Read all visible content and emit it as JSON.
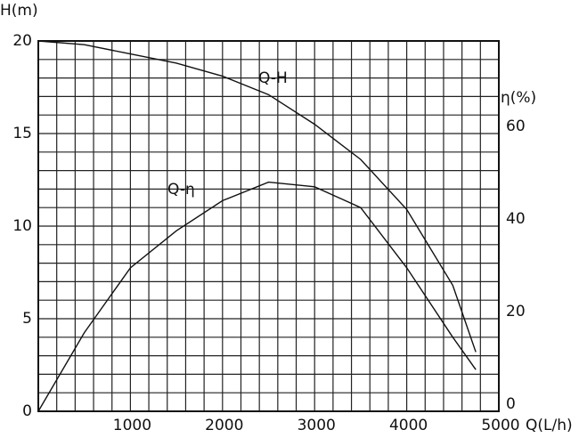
{
  "chart_data": {
    "type": "line",
    "y_label": "H(m)",
    "y2_label": "η(%)",
    "x_label": "Q(L/h)",
    "x": [
      0,
      500,
      1000,
      1500,
      2000,
      2500,
      3000,
      3500,
      4000,
      4500,
      4750
    ],
    "series": [
      {
        "name": "Q-H",
        "color": "#111111",
        "values": [
          20,
          19.8,
          19.3,
          18.8,
          18.1,
          17.1,
          15.5,
          13.6,
          10.9,
          6.8,
          3.2
        ]
      },
      {
        "name": "Q-η",
        "color": "#111111",
        "axis": "y2",
        "values": [
          0,
          17,
          31,
          39,
          45.5,
          49.5,
          48.5,
          44,
          31,
          16,
          9
        ]
      }
    ],
    "xlim": [
      0,
      5000
    ],
    "xticks": [
      1000,
      2000,
      3000,
      4000,
      5000
    ],
    "ylim": [
      0,
      20
    ],
    "yticks": [
      0,
      5,
      10,
      15,
      20
    ],
    "y2lim": [
      0,
      80
    ],
    "y2ticks": [
      0,
      20,
      40,
      60
    ],
    "xgrid": [
      0,
      200,
      400,
      600,
      800,
      1000,
      1200,
      1400,
      1600,
      1800,
      2000,
      2200,
      2400,
      2600,
      2800,
      3000,
      3200,
      3400,
      3600,
      3800,
      4000,
      4200,
      4400,
      4600,
      4800,
      5000
    ],
    "ygrid": [
      0,
      1,
      2,
      3,
      4,
      5,
      6,
      7,
      8,
      9,
      10,
      11,
      12,
      13,
      14,
      15,
      16,
      17,
      18,
      19,
      20
    ],
    "grid": true
  }
}
